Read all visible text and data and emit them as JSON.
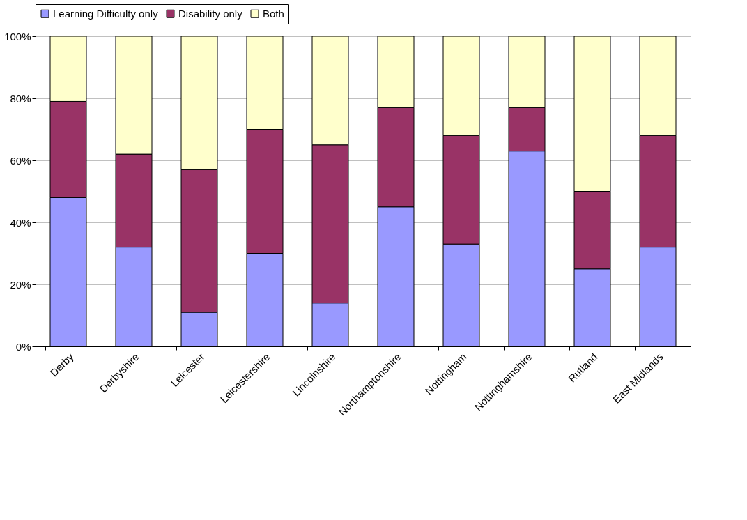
{
  "chart_data": {
    "type": "bar",
    "stacked": true,
    "categories": [
      "Derby",
      "Derbyshire",
      "Leicester",
      "Leicestershire",
      "Lincolnshire",
      "Northamptonshire",
      "Nottingham",
      "Nottinghamshire",
      "Rutland",
      "East Midlands"
    ],
    "series": [
      {
        "name": "Learning Difficulty only",
        "color": "#9999ff",
        "values": [
          48,
          32,
          11,
          30,
          14,
          45,
          33,
          63,
          25,
          32
        ]
      },
      {
        "name": "Disability only",
        "color": "#993366",
        "values": [
          31,
          30,
          46,
          40,
          51,
          32,
          35,
          14,
          25,
          36
        ]
      },
      {
        "name": "Both",
        "color": "#ffffcc",
        "values": [
          21,
          38,
          43,
          30,
          35,
          23,
          32,
          23,
          50,
          32
        ]
      }
    ],
    "ylim": [
      0,
      100
    ],
    "yticks": [
      {
        "value": 0,
        "label": "0%"
      },
      {
        "value": 20,
        "label": "20%"
      },
      {
        "value": 40,
        "label": "40%"
      },
      {
        "value": 60,
        "label": "60%"
      },
      {
        "value": 80,
        "label": "80%"
      },
      {
        "value": 100,
        "label": "100%"
      }
    ],
    "grid": "y",
    "legend": "top"
  }
}
